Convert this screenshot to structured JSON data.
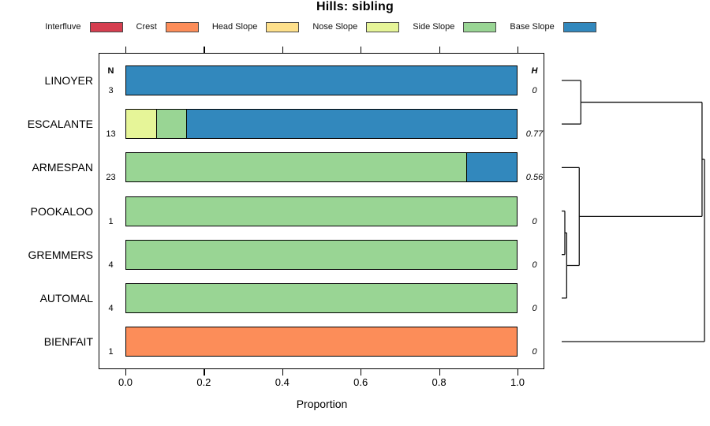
{
  "title": "Hills: sibling",
  "legend": {
    "items": [
      {
        "label": "Interfluve",
        "color": "#D53E4F"
      },
      {
        "label": "Crest",
        "color": "#FC8D59"
      },
      {
        "label": "Head Slope",
        "color": "#FEE08B"
      },
      {
        "label": "Nose Slope",
        "color": "#E6F598"
      },
      {
        "label": "Side Slope",
        "color": "#99D594"
      },
      {
        "label": "Base Slope",
        "color": "#3288BD"
      }
    ]
  },
  "columns": {
    "n_header": "N",
    "h_header": "H"
  },
  "chart_data": {
    "type": "bar",
    "stacked": true,
    "orientation": "horizontal",
    "title": "Hills: sibling",
    "xlabel": "Proportion",
    "xlim": [
      0,
      1
    ],
    "x_ticks": [
      "0.0",
      "0.2",
      "0.4",
      "0.6",
      "0.8",
      "1.0"
    ],
    "grid": false,
    "rows": [
      {
        "name": "LINOYER",
        "n": "3",
        "h": "0",
        "segments": [
          {
            "category": "Base Slope",
            "value": 1.0
          }
        ]
      },
      {
        "name": "ESCALANTE",
        "n": "13",
        "h": "0.77",
        "segments": [
          {
            "category": "Nose Slope",
            "value": 0.077
          },
          {
            "category": "Side Slope",
            "value": 0.077
          },
          {
            "category": "Base Slope",
            "value": 0.846
          }
        ]
      },
      {
        "name": "ARMESPAN",
        "n": "23",
        "h": "0.56",
        "segments": [
          {
            "category": "Side Slope",
            "value": 0.87
          },
          {
            "category": "Base Slope",
            "value": 0.13
          }
        ]
      },
      {
        "name": "POOKALOO",
        "n": "1",
        "h": "0",
        "segments": [
          {
            "category": "Side Slope",
            "value": 1.0
          }
        ]
      },
      {
        "name": "GREMMERS",
        "n": "4",
        "h": "0",
        "segments": [
          {
            "category": "Side Slope",
            "value": 1.0
          }
        ]
      },
      {
        "name": "AUTOMAL",
        "n": "4",
        "h": "0",
        "segments": [
          {
            "category": "Side Slope",
            "value": 1.0
          }
        ]
      },
      {
        "name": "BIENFAIT",
        "n": "1",
        "h": "0",
        "segments": [
          {
            "category": "Crest",
            "value": 1.0
          }
        ]
      }
    ]
  },
  "dendrogram": {
    "leaf_order": [
      "LINOYER",
      "ESCALANTE",
      "ARMESPAN",
      "POOKALOO",
      "GREMMERS",
      "AUTOMAL",
      "BIENFAIT"
    ],
    "merges": [
      {
        "id": "c1",
        "a": "POOKALOO",
        "b": "GREMMERS",
        "height": 0.022
      },
      {
        "id": "c2",
        "a": "c1",
        "b": "AUTOMAL",
        "height": 0.035
      },
      {
        "id": "c3",
        "a": "ARMESPAN",
        "b": "c2",
        "height": 0.123
      },
      {
        "id": "c4",
        "a": "LINOYER",
        "b": "ESCALANTE",
        "height": 0.134
      },
      {
        "id": "c5",
        "a": "c4",
        "b": "c3",
        "height": 0.983
      },
      {
        "id": "c6",
        "a": "c5",
        "b": "BIENFAIT",
        "height": 1.0
      }
    ]
  }
}
